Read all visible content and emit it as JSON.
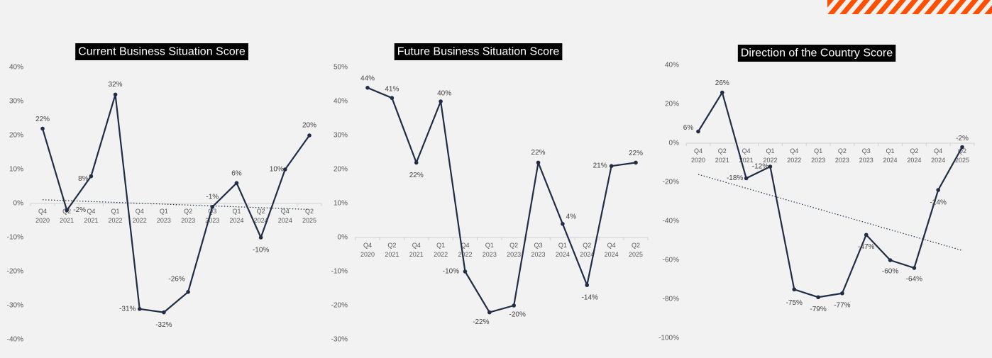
{
  "colors": {
    "line": "#1f2d47",
    "title_bg": "#000000",
    "title_text": "#ffffff",
    "axis_text": "#595959",
    "stripe": "#fe5000",
    "background": "#f2f2f2"
  },
  "chart_data": [
    {
      "type": "line",
      "title": "Current Business Situation Score",
      "categories": [
        [
          "Q4",
          "2020"
        ],
        [
          "Q2",
          "2021"
        ],
        [
          "Q4",
          "2021"
        ],
        [
          "Q1",
          "2022"
        ],
        [
          "Q4",
          "2022"
        ],
        [
          "Q1",
          "2023"
        ],
        [
          "Q2",
          "2023"
        ],
        [
          "Q3",
          "2023"
        ],
        [
          "Q1",
          "2024"
        ],
        [
          "Q2",
          "2024"
        ],
        [
          "Q4",
          "2024"
        ],
        [
          "Q2",
          "2025"
        ]
      ],
      "values": [
        22,
        -2,
        8,
        32,
        -31,
        -32,
        -26,
        -1,
        6,
        -10,
        10,
        20
      ],
      "labels": [
        "22%",
        "-2%",
        "8%",
        "32%",
        "-31%",
        "-32%",
        "-26%",
        "-1%",
        "6%",
        "-10%",
        "10%",
        "20%"
      ],
      "ylim": [
        -40,
        40
      ],
      "yticks": [
        40,
        30,
        20,
        10,
        0,
        -10,
        -20,
        -30,
        -40
      ],
      "ytick_labels": [
        "40%",
        "30%",
        "20%",
        "10%",
        "0%",
        "-10%",
        "-20%",
        "-30%",
        "-40%"
      ],
      "trendline": true
    },
    {
      "type": "line",
      "title": "Future Business Situation Score",
      "categories": [
        [
          "Q4",
          "2020"
        ],
        [
          "Q2",
          "2021"
        ],
        [
          "Q4",
          "2021"
        ],
        [
          "Q1",
          "2022"
        ],
        [
          "Q4",
          "2022"
        ],
        [
          "Q1",
          "2023"
        ],
        [
          "Q2",
          "2023"
        ],
        [
          "Q3",
          "2023"
        ],
        [
          "Q1",
          "2024"
        ],
        [
          "Q2",
          "2024"
        ],
        [
          "Q4",
          "2024"
        ],
        [
          "Q2",
          "2025"
        ]
      ],
      "values": [
        44,
        41,
        22,
        40,
        -10,
        -22,
        -20,
        22,
        4,
        -14,
        21,
        22
      ],
      "labels": [
        "44%",
        "41%",
        "22%",
        "40%",
        "-10%",
        "-22%",
        "-20%",
        "22%",
        "4%",
        "-14%",
        "21%",
        "22%"
      ],
      "ylim": [
        -30,
        50
      ],
      "yticks": [
        50,
        40,
        30,
        20,
        10,
        0,
        -10,
        -20,
        -30
      ],
      "ytick_labels": [
        "50%",
        "40%",
        "30%",
        "20%",
        "10%",
        "0%",
        "-10%",
        "-20%",
        "-30%"
      ],
      "trendline": false
    },
    {
      "type": "line",
      "title": "Direction of the Country Score",
      "categories": [
        [
          "Q4",
          "2020"
        ],
        [
          "Q2",
          "2021"
        ],
        [
          "Q4",
          "2021"
        ],
        [
          "Q1",
          "2022"
        ],
        [
          "Q4",
          "2022"
        ],
        [
          "Q1",
          "2023"
        ],
        [
          "Q2",
          "2023"
        ],
        [
          "Q3",
          "2023"
        ],
        [
          "Q1",
          "2024"
        ],
        [
          "Q2",
          "2024"
        ],
        [
          "Q4",
          "2024"
        ],
        [
          "Q2",
          "2025"
        ]
      ],
      "values": [
        6,
        26,
        -18,
        -12,
        -75,
        -79,
        -77,
        -47,
        -60,
        -64,
        -24,
        -2
      ],
      "labels": [
        "6%",
        "26%",
        "-18%",
        "-12%",
        "-75%",
        "-79%",
        "-77%",
        "-47%",
        "-60%",
        "-64%",
        "-24%",
        "-2%"
      ],
      "ylim": [
        -100,
        40
      ],
      "yticks": [
        40,
        20,
        0,
        -20,
        -40,
        -60,
        -80,
        -100
      ],
      "ytick_labels": [
        "40%",
        "20%",
        "0%",
        "-20%",
        "-40%",
        "-60%",
        "-80%",
        "-100%"
      ],
      "trendline": true
    }
  ]
}
